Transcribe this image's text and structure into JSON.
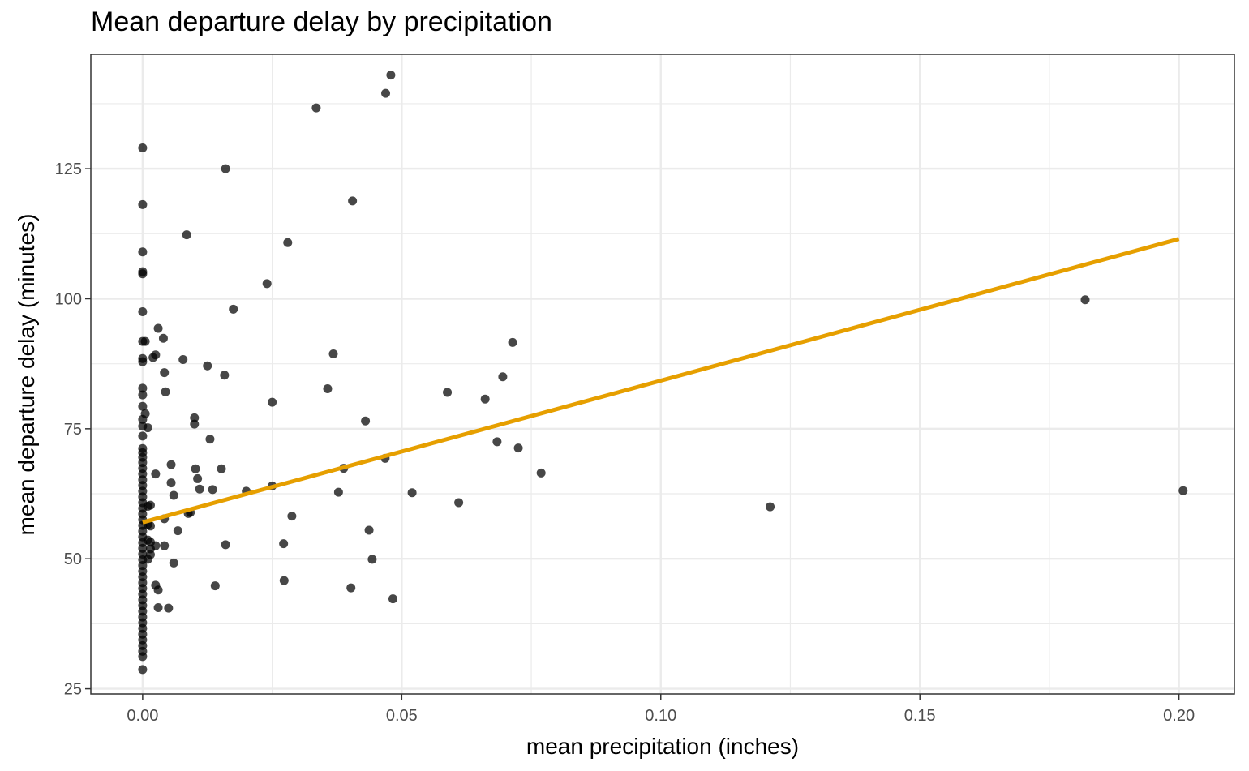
{
  "chart_data": {
    "type": "scatter",
    "title": "Mean departure delay by precipitation",
    "xlabel": "mean precipitation (inches)",
    "ylabel": "mean departure delay (minutes)",
    "xlim": [
      -0.01,
      0.2107
    ],
    "ylim": [
      24,
      147
    ],
    "x_ticks": [
      0.0,
      0.05,
      0.1,
      0.15,
      0.2
    ],
    "x_tick_labels": [
      "0.00",
      "0.05",
      "0.10",
      "0.15",
      "0.20"
    ],
    "y_ticks": [
      25,
      50,
      75,
      100,
      125
    ],
    "y_tick_labels": [
      "25",
      "50",
      "75",
      "100",
      "125"
    ],
    "grid": true,
    "legend": "none",
    "colors": {
      "points": "#000000",
      "trend_line": "#E69F00",
      "grid": "#ebebeb",
      "panel_border": "#333333"
    },
    "points": [
      [
        0.0,
        129.0
      ],
      [
        0.0,
        118.1
      ],
      [
        0.0,
        109.0
      ],
      [
        0.0,
        105.2
      ],
      [
        0.0,
        104.8
      ],
      [
        0.0,
        97.5
      ],
      [
        0.0,
        91.8
      ],
      [
        0.0,
        88.5
      ],
      [
        0.0,
        87.9
      ],
      [
        0.0,
        82.8
      ],
      [
        0.0,
        81.5
      ],
      [
        0.0,
        79.3
      ],
      [
        0.0,
        76.8
      ],
      [
        0.0,
        75.5
      ],
      [
        0.0,
        73.6
      ],
      [
        0.0,
        71.2
      ],
      [
        0.0,
        70.4
      ],
      [
        0.0,
        69.5
      ],
      [
        0.0,
        68.5
      ],
      [
        0.0,
        67.4
      ],
      [
        0.0,
        66.3
      ],
      [
        0.0,
        65.2
      ],
      [
        0.0,
        64.1
      ],
      [
        0.0,
        63.0
      ],
      [
        0.0,
        61.9
      ],
      [
        0.0,
        60.8
      ],
      [
        0.0,
        59.7
      ],
      [
        0.0,
        58.6
      ],
      [
        0.0,
        57.5
      ],
      [
        0.0,
        56.4
      ],
      [
        0.0,
        55.3
      ],
      [
        0.0,
        54.2
      ],
      [
        0.0,
        53.1
      ],
      [
        0.0,
        52.0
      ],
      [
        0.0,
        50.9
      ],
      [
        0.0,
        49.8
      ],
      [
        0.0,
        48.7
      ],
      [
        0.0,
        47.6
      ],
      [
        0.0,
        46.5
      ],
      [
        0.0,
        45.4
      ],
      [
        0.0,
        44.3
      ],
      [
        0.0,
        43.2
      ],
      [
        0.0,
        42.1
      ],
      [
        0.0,
        41.0
      ],
      [
        0.0,
        39.9
      ],
      [
        0.0,
        38.8
      ],
      [
        0.0,
        37.7
      ],
      [
        0.0,
        36.6
      ],
      [
        0.0,
        35.5
      ],
      [
        0.0,
        34.4
      ],
      [
        0.0,
        33.3
      ],
      [
        0.0,
        32.2
      ],
      [
        0.0,
        31.2
      ],
      [
        0.0,
        28.7
      ],
      [
        0.0005,
        91.8
      ],
      [
        0.0005,
        77.9
      ],
      [
        0.001,
        75.2
      ],
      [
        0.001,
        60.1
      ],
      [
        0.0015,
        60.3
      ],
      [
        0.001,
        56.6
      ],
      [
        0.0015,
        56.3
      ],
      [
        0.001,
        53.6
      ],
      [
        0.0015,
        51.9
      ],
      [
        0.001,
        49.9
      ],
      [
        0.0015,
        50.8
      ],
      [
        0.0015,
        53.2
      ],
      [
        0.002,
        88.7
      ],
      [
        0.0025,
        89.2
      ],
      [
        0.0025,
        66.3
      ],
      [
        0.0025,
        52.5
      ],
      [
        0.0025,
        44.9
      ],
      [
        0.003,
        44.0
      ],
      [
        0.003,
        94.3
      ],
      [
        0.003,
        40.6
      ],
      [
        0.004,
        92.4
      ],
      [
        0.0042,
        85.8
      ],
      [
        0.0044,
        82.1
      ],
      [
        0.0042,
        57.7
      ],
      [
        0.0042,
        52.5
      ],
      [
        0.005,
        40.5
      ],
      [
        0.0055,
        68.1
      ],
      [
        0.0055,
        64.6
      ],
      [
        0.006,
        62.2
      ],
      [
        0.006,
        49.2
      ],
      [
        0.0068,
        55.4
      ],
      [
        0.0078,
        88.3
      ],
      [
        0.0085,
        112.3
      ],
      [
        0.0088,
        58.7
      ],
      [
        0.0092,
        58.9
      ],
      [
        0.01,
        77.1
      ],
      [
        0.01,
        75.9
      ],
      [
        0.0102,
        67.3
      ],
      [
        0.0106,
        65.4
      ],
      [
        0.011,
        63.4
      ],
      [
        0.0125,
        87.1
      ],
      [
        0.013,
        73.0
      ],
      [
        0.0135,
        63.3
      ],
      [
        0.014,
        44.8
      ],
      [
        0.0152,
        67.3
      ],
      [
        0.0158,
        85.3
      ],
      [
        0.016,
        125.0
      ],
      [
        0.016,
        52.7
      ],
      [
        0.0175,
        98.0
      ],
      [
        0.02,
        63.0
      ],
      [
        0.024,
        102.9
      ],
      [
        0.025,
        80.1
      ],
      [
        0.025,
        64.0
      ],
      [
        0.0272,
        52.9
      ],
      [
        0.0273,
        45.8
      ],
      [
        0.028,
        110.8
      ],
      [
        0.0288,
        58.2
      ],
      [
        0.0335,
        136.7
      ],
      [
        0.0357,
        82.7
      ],
      [
        0.0368,
        89.4
      ],
      [
        0.0378,
        62.8
      ],
      [
        0.0388,
        67.4
      ],
      [
        0.0402,
        44.4
      ],
      [
        0.0405,
        118.8
      ],
      [
        0.043,
        76.5
      ],
      [
        0.0437,
        55.5
      ],
      [
        0.0443,
        49.9
      ],
      [
        0.0468,
        69.3
      ],
      [
        0.0469,
        139.5
      ],
      [
        0.0479,
        143.0
      ],
      [
        0.0483,
        42.3
      ],
      [
        0.052,
        62.7
      ],
      [
        0.0588,
        82.0
      ],
      [
        0.061,
        60.8
      ],
      [
        0.0661,
        80.7
      ],
      [
        0.0684,
        72.5
      ],
      [
        0.0695,
        85.0
      ],
      [
        0.0714,
        91.6
      ],
      [
        0.0725,
        71.3
      ],
      [
        0.0769,
        66.5
      ],
      [
        0.1211,
        60.0
      ],
      [
        0.1819,
        99.8
      ],
      [
        0.2008,
        63.1
      ]
    ],
    "trend_line": {
      "x": [
        0.0,
        0.2
      ],
      "y": [
        57.0,
        111.5
      ]
    }
  }
}
